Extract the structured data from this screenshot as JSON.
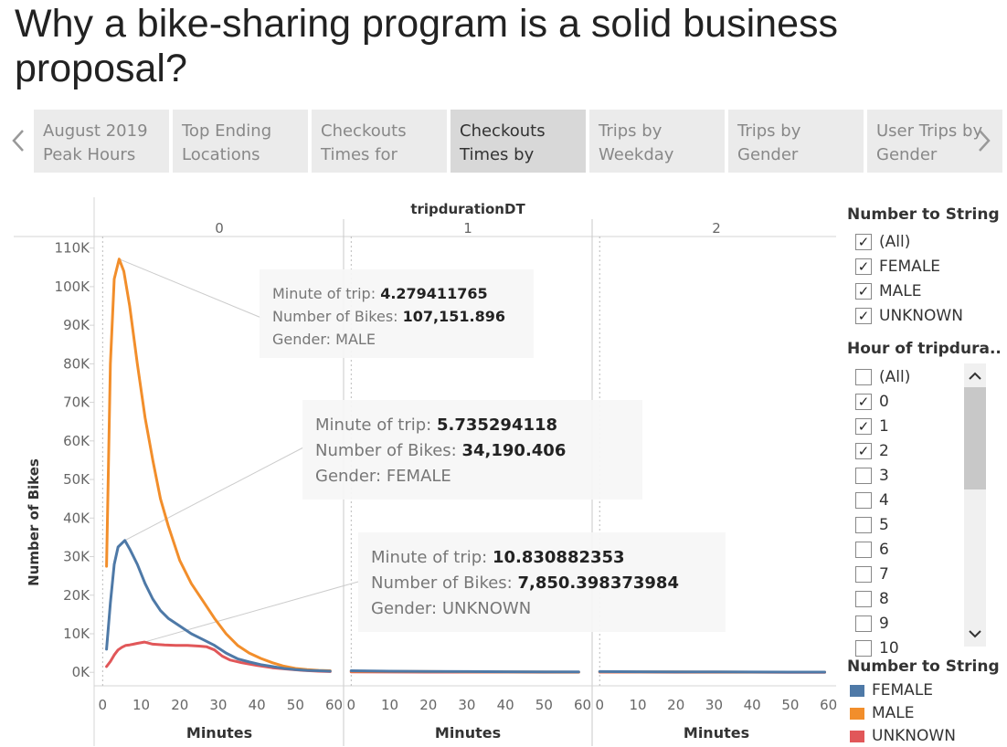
{
  "title": "Why a bike-sharing program is a solid business proposal?",
  "tabs": [
    {
      "line1": "August 2019",
      "line2": "Peak Hours",
      "active": false
    },
    {
      "line1": "Top Ending",
      "line2": "Locations",
      "active": false
    },
    {
      "line1": "Checkouts",
      "line2": "Times for",
      "active": false
    },
    {
      "line1": "Checkouts",
      "line2": "Times by",
      "active": true
    },
    {
      "line1": "Trips by",
      "line2": "Weekday",
      "active": false
    },
    {
      "line1": "Trips by",
      "line2": "Gender",
      "active": false
    },
    {
      "line1": "User Trips by",
      "line2": "Gender",
      "active": false
    }
  ],
  "nav": {
    "prev_icon": "chevron-left-icon",
    "next_icon": "chevron-right-icon"
  },
  "colors": {
    "FEMALE": "#4e79a7",
    "MALE": "#f28e2b",
    "UNKNOWN": "#e15759",
    "tab_active": "#d8d8d8",
    "tab": "#ebebeb"
  },
  "filters": {
    "gender": {
      "title": "Number to String",
      "items": [
        {
          "label": "(All)",
          "checked": true
        },
        {
          "label": "FEMALE",
          "checked": true
        },
        {
          "label": "MALE",
          "checked": true
        },
        {
          "label": "UNKNOWN",
          "checked": true
        }
      ]
    },
    "hour": {
      "title": "Hour of tripdura..",
      "items": [
        {
          "label": "(All)",
          "checked": false
        },
        {
          "label": "0",
          "checked": true
        },
        {
          "label": "1",
          "checked": true
        },
        {
          "label": "2",
          "checked": true
        },
        {
          "label": "3",
          "checked": false
        },
        {
          "label": "4",
          "checked": false
        },
        {
          "label": "5",
          "checked": false
        },
        {
          "label": "6",
          "checked": false
        },
        {
          "label": "7",
          "checked": false
        },
        {
          "label": "8",
          "checked": false
        },
        {
          "label": "9",
          "checked": false
        },
        {
          "label": "10",
          "checked": false
        }
      ]
    }
  },
  "color_legend": {
    "title": "Number to String",
    "items": [
      "FEMALE",
      "MALE",
      "UNKNOWN"
    ]
  },
  "tooltips": [
    {
      "label1": "Minute of trip:",
      "value1": "4.279411765",
      "label2": "Number of Bikes:",
      "value2": "107,151.896",
      "label3": "Gender:",
      "value3": "MALE"
    },
    {
      "label1": "Minute of trip:",
      "value1": "5.735294118",
      "label2": "Number of Bikes:",
      "value2": "34,190.406",
      "label3": "Gender:",
      "value3": "FEMALE"
    },
    {
      "label1": "Minute of trip:",
      "value1": "10.830882353",
      "label2": "Number of Bikes:",
      "value2": "7,850.398373984",
      "label3": "Gender:",
      "value3": "UNKNOWN"
    }
  ],
  "chart_data": {
    "type": "line",
    "title": "",
    "column_header": "tripdurationDT",
    "panels": [
      "0",
      "1",
      "2"
    ],
    "xlabel": "Minutes",
    "ylabel": "Number of Bikes",
    "xticks": [
      "0",
      "10",
      "20",
      "30",
      "40",
      "50",
      "60"
    ],
    "yticks": [
      "0K",
      "10K",
      "20K",
      "30K",
      "40K",
      "50K",
      "60K",
      "70K",
      "80K",
      "90K",
      "100K",
      "110K"
    ],
    "xlim": [
      -1.5,
      62
    ],
    "ylim": [
      -3500,
      113000
    ],
    "grid": false,
    "legend": "right",
    "series": [
      {
        "name": "MALE",
        "panel": "0",
        "x": [
          1,
          2,
          3,
          4.28,
          5.5,
          7,
          9,
          11,
          13,
          15,
          17,
          20,
          23,
          26,
          29,
          32,
          35,
          38,
          41,
          44,
          47,
          50,
          53,
          56,
          59
        ],
        "y": [
          27500,
          80000,
          102000,
          107152,
          104000,
          95000,
          80000,
          66000,
          55000,
          45000,
          38000,
          29000,
          23000,
          18500,
          14000,
          10000,
          7000,
          5000,
          3600,
          2500,
          1600,
          1000,
          700,
          500,
          400
        ]
      },
      {
        "name": "FEMALE",
        "panel": "0",
        "x": [
          1,
          2,
          3,
          4,
          5.74,
          7,
          9,
          11,
          13,
          15,
          17,
          20,
          23,
          26,
          29,
          32,
          35,
          38,
          41,
          44,
          47,
          50,
          53,
          56,
          59
        ],
        "y": [
          6000,
          18000,
          28000,
          32500,
          34190,
          32000,
          28000,
          23000,
          19000,
          16000,
          14000,
          12000,
          10000,
          8500,
          7000,
          5000,
          3500,
          2700,
          2000,
          1500,
          1000,
          700,
          500,
          400,
          300
        ]
      },
      {
        "name": "UNKNOWN",
        "panel": "0",
        "x": [
          1,
          2,
          3,
          4,
          5,
          6,
          7,
          8,
          9,
          10.83,
          13,
          16,
          19,
          22,
          25,
          27,
          29,
          31,
          33,
          36,
          40,
          44,
          48,
          52,
          56,
          59
        ],
        "y": [
          1500,
          2800,
          4500,
          5800,
          6500,
          7000,
          7100,
          7300,
          7500,
          7850,
          7300,
          7100,
          7000,
          7000,
          6800,
          6600,
          5800,
          4200,
          3200,
          2500,
          1800,
          1200,
          800,
          500,
          300,
          200
        ]
      },
      {
        "name": "FEMALE",
        "panel": "1",
        "x": [
          0,
          10,
          20,
          30,
          40,
          50,
          59
        ],
        "y": [
          400,
          300,
          250,
          200,
          150,
          100,
          100
        ]
      },
      {
        "name": "MALE",
        "panel": "1",
        "x": [
          0,
          10,
          20,
          30,
          40,
          50,
          59
        ],
        "y": [
          300,
          250,
          200,
          150,
          100,
          80,
          60
        ]
      },
      {
        "name": "UNKNOWN",
        "panel": "1",
        "x": [
          0,
          10,
          20,
          30,
          40,
          50,
          59
        ],
        "y": [
          100,
          80,
          60,
          50,
          40,
          30,
          20
        ]
      },
      {
        "name": "FEMALE",
        "panel": "2",
        "x": [
          0,
          10,
          20,
          30,
          40,
          50,
          59
        ],
        "y": [
          200,
          150,
          120,
          100,
          80,
          60,
          50
        ]
      },
      {
        "name": "MALE",
        "panel": "2",
        "x": [
          0,
          10,
          20,
          30,
          40,
          50,
          59
        ],
        "y": [
          150,
          120,
          100,
          80,
          60,
          50,
          40
        ]
      },
      {
        "name": "UNKNOWN",
        "panel": "2",
        "x": [
          0,
          10,
          20,
          30,
          40,
          50,
          59
        ],
        "y": [
          50,
          40,
          30,
          25,
          20,
          15,
          10
        ]
      }
    ]
  }
}
